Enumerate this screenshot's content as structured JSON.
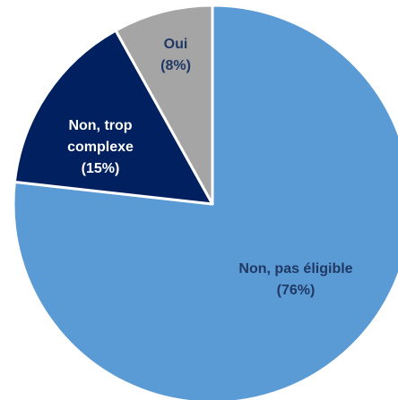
{
  "chart_data": {
    "type": "pie",
    "categories": [
      "Non, pas éligible",
      "Non, trop complexe",
      "Oui"
    ],
    "values": [
      76,
      15,
      8
    ],
    "value_labels": [
      "(76%)",
      "(15%)",
      "(8%)"
    ],
    "colors": [
      "#5b9bd5",
      "#002060",
      "#a5a5a5"
    ]
  }
}
